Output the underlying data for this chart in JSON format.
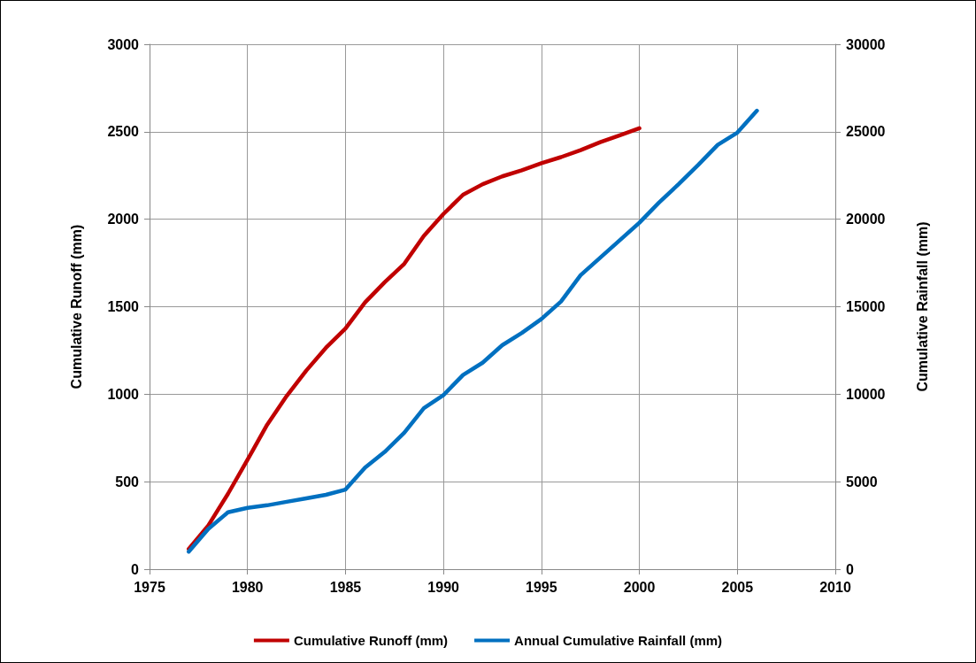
{
  "chart_data": {
    "type": "line",
    "xlabel": null,
    "ylabel": "Cumulative Runoff (mm)",
    "y2label": "Cumulative Rainfall (mm)",
    "xlim": [
      1975,
      2010
    ],
    "xticks": [
      1975,
      1980,
      1985,
      1990,
      1995,
      2000,
      2005,
      2010
    ],
    "ylim": [
      0,
      3000
    ],
    "yticks": [
      0,
      500,
      1000,
      1500,
      2000,
      2500,
      3000
    ],
    "y2lim": [
      0,
      30000
    ],
    "y2ticks": [
      0,
      5000,
      10000,
      15000,
      20000,
      25000,
      30000
    ],
    "grid": true,
    "legend": "bottom",
    "marker": "none",
    "line_style": "solid",
    "series": [
      {
        "name": "Cumulative Runoff (mm)",
        "color": "#c00000",
        "x": [
          1977,
          1978,
          1979,
          1980,
          1981,
          1982,
          1983,
          1984,
          1985,
          1986,
          1987,
          1988,
          1989,
          1990,
          1991,
          1992,
          1993,
          1994,
          1995,
          1996,
          1997,
          1998,
          1999,
          2000
        ],
        "values": [
          115,
          250,
          430,
          625,
          825,
          990,
          1135,
          1265,
          1375,
          1525,
          1640,
          1745,
          1905,
          2030,
          2140,
          2200,
          2245,
          2280,
          2320,
          2355,
          2395,
          2440,
          2480,
          2520
        ]
      },
      {
        "name": "Annual Cumulative Rainfall (mm)",
        "color": "#0070c0",
        "axis": "y2",
        "x": [
          1977,
          1978,
          1979,
          1980,
          1981,
          1982,
          1983,
          1984,
          1985,
          1986,
          1987,
          1988,
          1989,
          1990,
          1991,
          1992,
          1993,
          1994,
          1995,
          1996,
          1997,
          1998,
          1999,
          2000,
          2001,
          2002,
          2003,
          2004,
          2005,
          2006
        ],
        "values": [
          1000,
          2300,
          3250,
          3500,
          3650,
          3850,
          4050,
          4250,
          4550,
          5800,
          6700,
          7800,
          9200,
          9950,
          11100,
          11800,
          12800,
          13500,
          14300,
          15300,
          16800,
          17800,
          18800,
          19800,
          20950,
          22000,
          23100,
          24250,
          24950,
          26200
        ]
      }
    ]
  }
}
